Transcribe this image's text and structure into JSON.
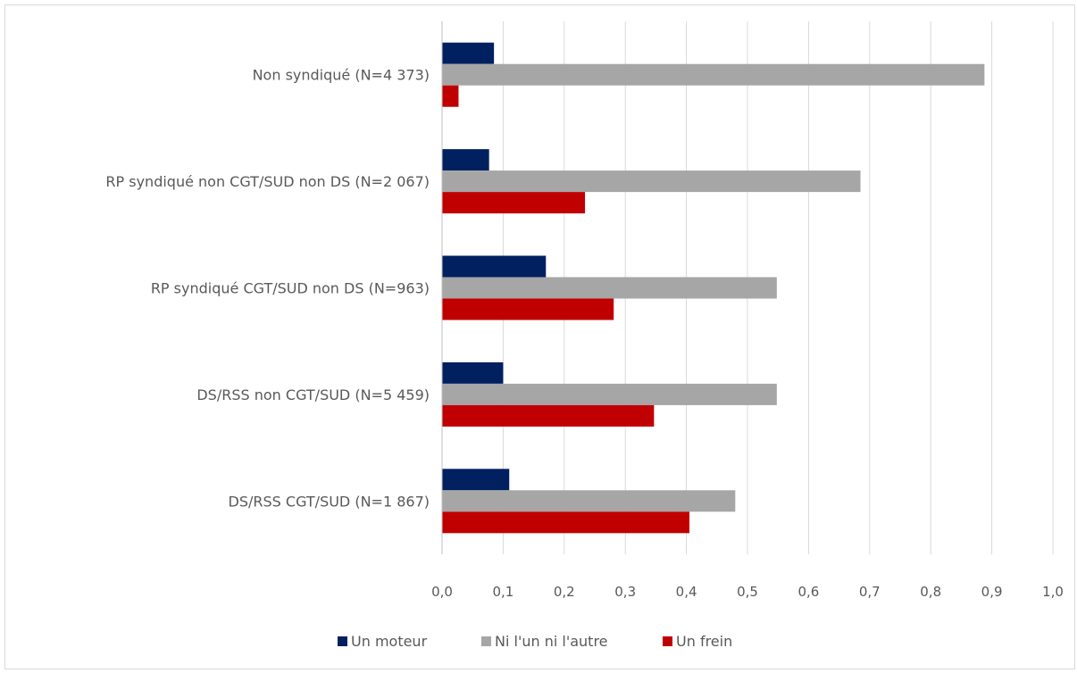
{
  "chart_data": {
    "type": "bar",
    "orientation": "horizontal",
    "title": "",
    "xlabel": "",
    "ylabel": "",
    "xlim": [
      0,
      1.0
    ],
    "x_ticks": [
      "0,0",
      "0,1",
      "0,2",
      "0,3",
      "0,4",
      "0,5",
      "0,6",
      "0,7",
      "0,8",
      "0,9",
      "1,0"
    ],
    "grid": "vertical",
    "legend_position": "bottom",
    "categories": [
      "Non syndiqué (N=4 373)",
      "RP syndiqué non CGT/SUD non DS (N=2 067)",
      "RP syndiqué CGT/SUD non DS (N=963)",
      "DS/RSS non CGT/SUD (N=5 459)",
      "DS/RSS CGT/SUD (N=1 867)"
    ],
    "series": [
      {
        "name": "Un moteur",
        "color": "#002060",
        "values": [
          0.085,
          0.077,
          0.17,
          0.1,
          0.11
        ]
      },
      {
        "name": "Ni l'un ni l'autre",
        "color": "#a6a6a6",
        "values": [
          0.888,
          0.685,
          0.548,
          0.548,
          0.48
        ]
      },
      {
        "name": "Un frein",
        "color": "#c00000",
        "values": [
          0.027,
          0.234,
          0.281,
          0.347,
          0.405
        ]
      }
    ]
  }
}
